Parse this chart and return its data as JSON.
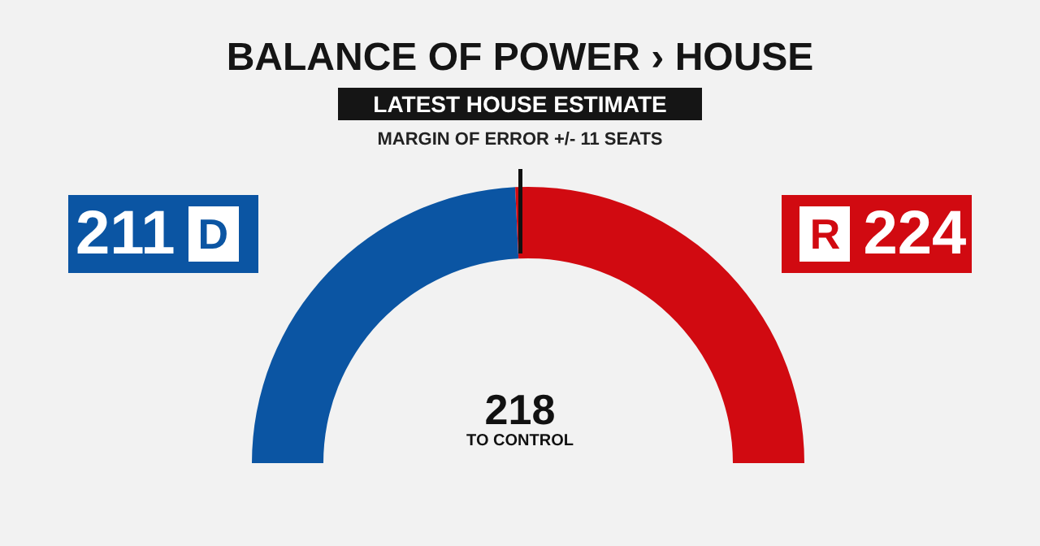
{
  "chart_data": {
    "type": "donut",
    "title": "BALANCE OF POWER › HOUSE",
    "subtitle": "LATEST HOUSE ESTIMATE",
    "categories": [
      "D",
      "R"
    ],
    "values": [
      211,
      224
    ],
    "colors": [
      "#0b55a3",
      "#d10a11"
    ],
    "data_labels": true,
    "annotations": [
      "MARGIN OF ERROR +/- 11 SEATS",
      "218",
      "TO CONTROL"
    ]
  }
}
